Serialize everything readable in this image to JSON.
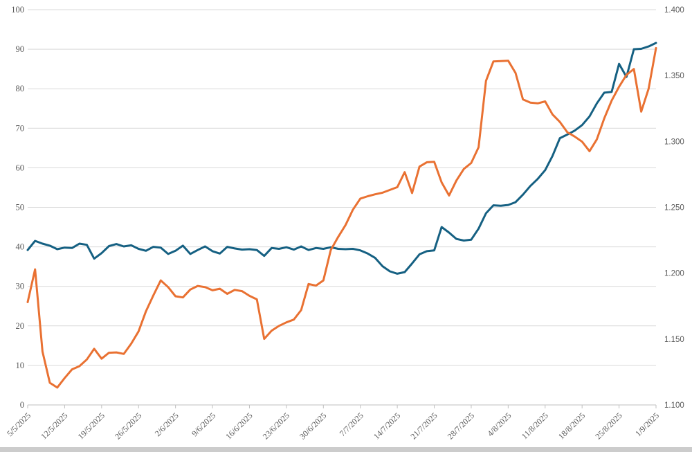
{
  "page": {
    "title": ""
  },
  "colors": {
    "series_blue": "#156082",
    "series_orange": "#E97132",
    "gridline": "#D9D9D9",
    "axis_line": "#BFBFBF",
    "axis_label": "#595959",
    "bottom_strip": "#CCCCCC",
    "background": "#FFFFFF"
  },
  "chart_data": {
    "type": "line",
    "title": "",
    "xlabel": "",
    "ylabel": "",
    "grid": true,
    "legend": "none",
    "x_tick_labels": [
      "5/5/2025",
      "12/5/2025",
      "19/5/2025",
      "26/5/2025",
      "2/6/2025",
      "9/6/2025",
      "16/6/2025",
      "23/6/2025",
      "30/6/2025",
      "7/7/2025",
      "14/7/2025",
      "21/7/2025",
      "28/7/2025",
      "4/8/2025",
      "11/8/2025",
      "18/8/2025",
      "25/8/2025",
      "1/9/2025"
    ],
    "x_points_per_tick": 5,
    "left_axis": {
      "min": 0,
      "max": 100,
      "step": 10,
      "tick_labels": [
        "0",
        "10",
        "20",
        "30",
        "40",
        "50",
        "60",
        "70",
        "80",
        "90",
        "100"
      ]
    },
    "right_axis": {
      "min": 1.1,
      "max": 1.4,
      "step": 0.05,
      "tick_labels": [
        "1.100",
        "1.150",
        "1.200",
        "1.250",
        "1.300",
        "1.350",
        "1.400"
      ]
    },
    "series": [
      {
        "name": "blue-series-secondary-axis",
        "color": "#156082",
        "axis": "right",
        "values": [
          1.2176,
          1.2245,
          1.2224,
          1.2209,
          1.2182,
          1.2194,
          1.2191,
          1.2224,
          1.2215,
          1.211,
          1.2152,
          1.2206,
          1.2221,
          1.2203,
          1.2212,
          1.2185,
          1.217,
          1.22,
          1.2194,
          1.2146,
          1.217,
          1.2209,
          1.2146,
          1.2176,
          1.2203,
          1.2167,
          1.2149,
          1.22,
          1.2188,
          1.2179,
          1.2182,
          1.2176,
          1.2131,
          1.2191,
          1.2185,
          1.2197,
          1.2179,
          1.2203,
          1.2176,
          1.2191,
          1.2185,
          1.2197,
          1.2185,
          1.2182,
          1.2185,
          1.2173,
          1.2149,
          1.2116,
          1.2053,
          1.2014,
          1.1996,
          1.2008,
          1.2074,
          1.2143,
          1.2167,
          1.2173,
          1.235,
          1.2308,
          1.226,
          1.2248,
          1.2254,
          1.2338,
          1.2455,
          1.2515,
          1.2512,
          1.2518,
          1.2539,
          1.2596,
          1.2662,
          1.2716,
          1.2782,
          1.289,
          1.3025,
          1.3052,
          1.3082,
          1.3124,
          1.319,
          1.3289,
          1.337,
          1.3376,
          1.3589,
          1.349,
          1.37,
          1.3703,
          1.3721,
          1.3748
        ]
      },
      {
        "name": "orange-series-primary-axis",
        "color": "#E97132",
        "axis": "left",
        "values": [
          26.0,
          34.3,
          13.5,
          5.6,
          4.4,
          6.8,
          9.0,
          9.8,
          11.5,
          14.2,
          11.7,
          13.2,
          13.3,
          12.9,
          15.5,
          18.6,
          23.7,
          27.7,
          31.5,
          29.8,
          27.5,
          27.2,
          29.2,
          30.1,
          29.8,
          29.0,
          29.4,
          28.1,
          29.1,
          28.8,
          27.6,
          26.7,
          16.7,
          18.8,
          20.0,
          20.9,
          21.6,
          24.0,
          30.6,
          30.2,
          31.5,
          39.2,
          42.5,
          45.5,
          49.4,
          52.2,
          52.8,
          53.3,
          53.7,
          54.4,
          55.1,
          58.9,
          53.6,
          60.3,
          61.4,
          61.5,
          56.3,
          53.0,
          56.8,
          59.7,
          61.2,
          65.2,
          82.0,
          86.9,
          87.0,
          87.1,
          84.0,
          77.3,
          76.5,
          76.3,
          76.8,
          73.5,
          71.6,
          69.0,
          67.9,
          66.6,
          64.2,
          67.2,
          72.5,
          77.0,
          80.5,
          83.5,
          85.0,
          74.2,
          80.0,
          90.3
        ]
      }
    ]
  }
}
